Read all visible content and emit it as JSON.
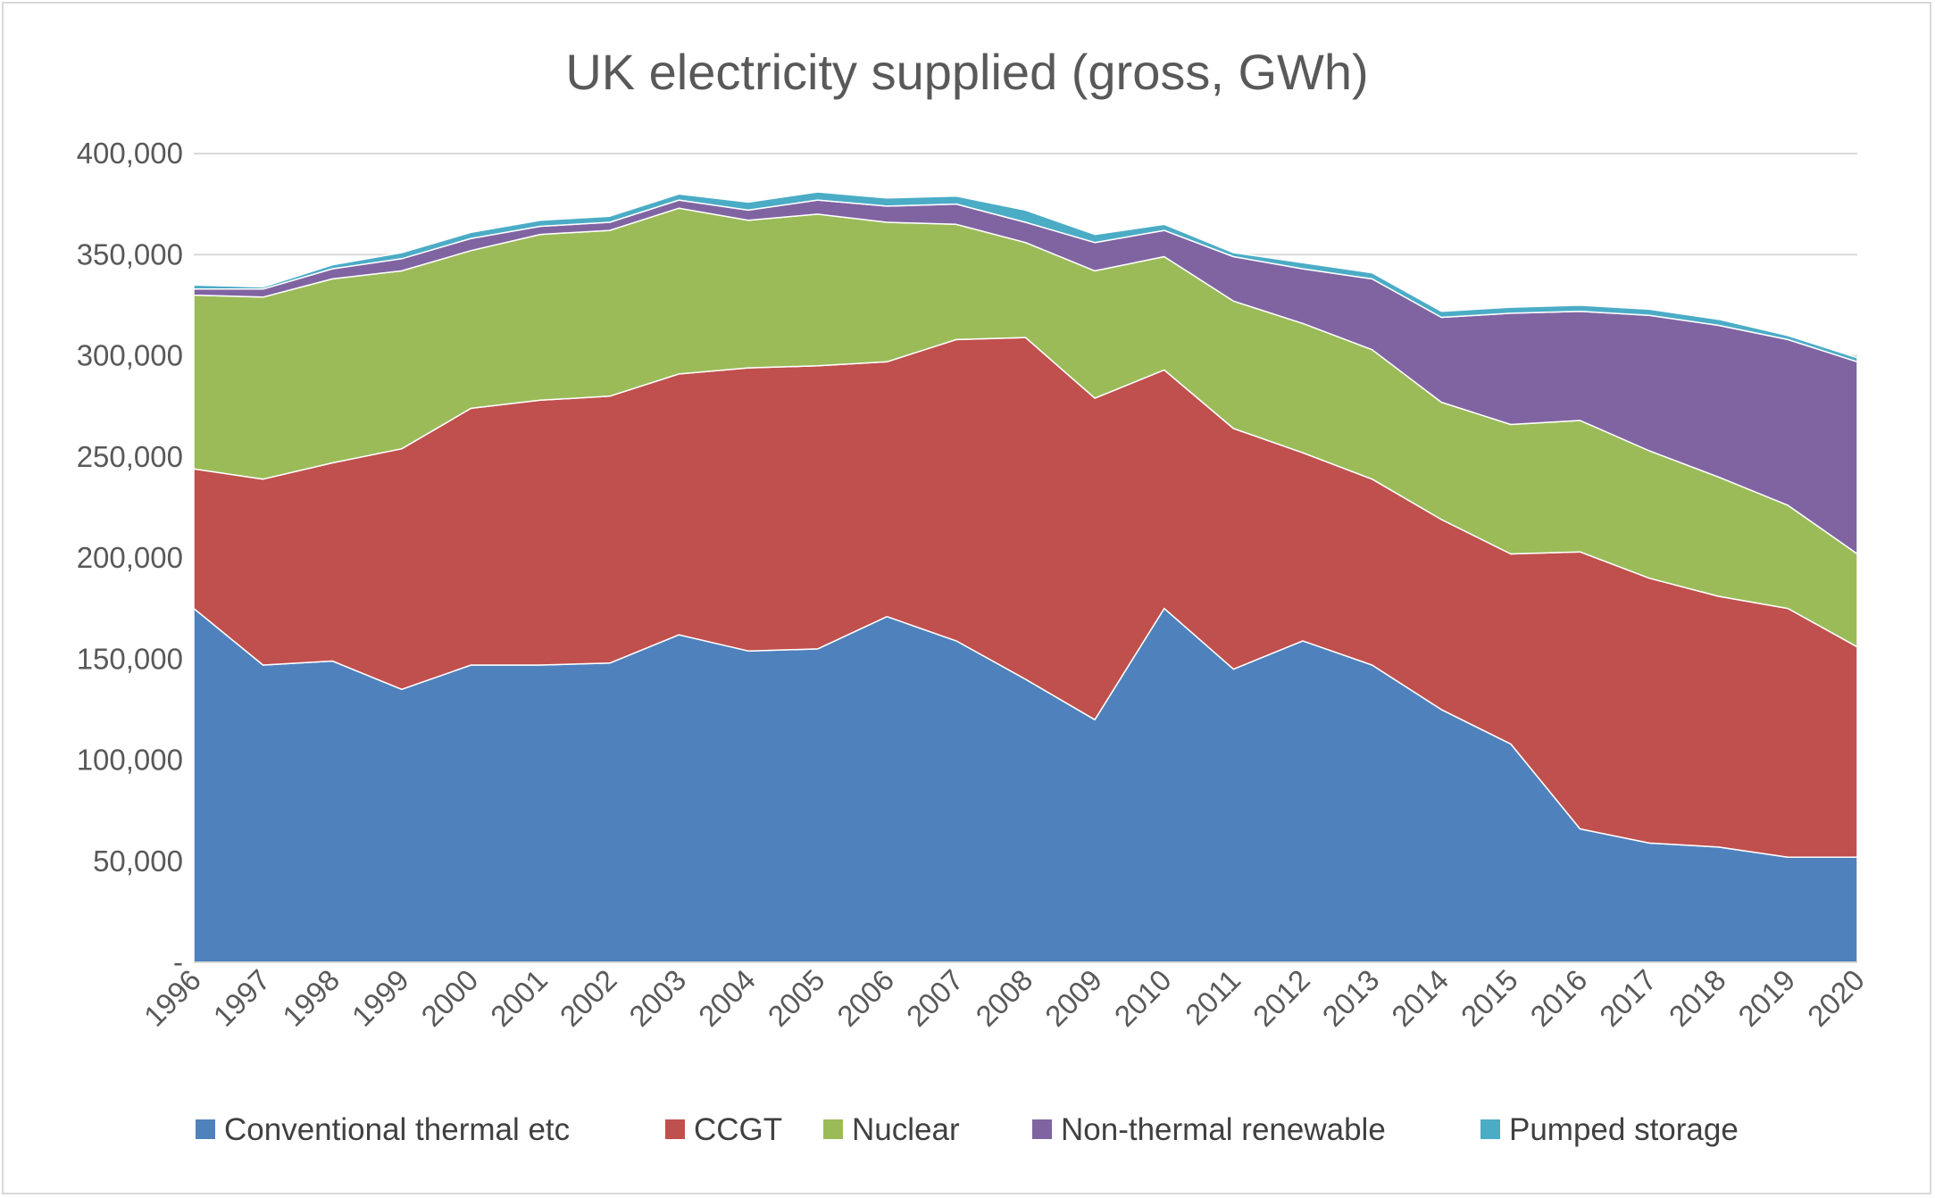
{
  "chart_data": {
    "type": "area",
    "stacked": true,
    "title": "UK electricity supplied (gross, GWh)",
    "xlabel": "",
    "ylabel": "",
    "ylim": [
      0,
      400000
    ],
    "y_ticks": [
      0,
      50000,
      100000,
      150000,
      200000,
      250000,
      300000,
      350000,
      400000
    ],
    "y_tick_labels": [
      "-",
      "50,000",
      "100,000",
      "150,000",
      "200,000",
      "250,000",
      "300,000",
      "350,000",
      "400,000"
    ],
    "grid": true,
    "legend_position": "bottom",
    "categories": [
      "1996",
      "1997",
      "1998",
      "1999",
      "2000",
      "2001",
      "2002",
      "2003",
      "2004",
      "2005",
      "2006",
      "2007",
      "2008",
      "2009",
      "2010",
      "2011",
      "2012",
      "2013",
      "2014",
      "2015",
      "2016",
      "2017",
      "2018",
      "2019",
      "2020"
    ],
    "series": [
      {
        "name": "Conventional thermal etc",
        "color": "#4f81bd",
        "values": [
          175000,
          147000,
          149000,
          135000,
          147000,
          147000,
          148000,
          162000,
          154000,
          155000,
          171000,
          159000,
          140000,
          120000,
          175000,
          145000,
          159000,
          147000,
          125000,
          108000,
          66000,
          59000,
          57000,
          52000,
          52000
        ]
      },
      {
        "name": "CCGT",
        "color": "#c0504d",
        "values": [
          69000,
          92000,
          98000,
          119000,
          127000,
          131000,
          132000,
          129000,
          140000,
          140000,
          126000,
          149000,
          169000,
          159000,
          118000,
          119000,
          93000,
          92000,
          94000,
          94000,
          137000,
          131000,
          124000,
          123000,
          104000
        ]
      },
      {
        "name": "Nuclear",
        "color": "#9bbb59",
        "values": [
          86000,
          90000,
          91000,
          88000,
          78000,
          82000,
          82000,
          82000,
          73000,
          75000,
          69000,
          57000,
          47000,
          63000,
          56000,
          63000,
          64000,
          64000,
          58000,
          64000,
          65000,
          63000,
          59000,
          51000,
          46000
        ]
      },
      {
        "name": "Non-thermal renewable",
        "color": "#8064a2",
        "values": [
          3000,
          4000,
          5000,
          6000,
          6000,
          4000,
          4000,
          4000,
          5000,
          7000,
          8000,
          10000,
          10000,
          14000,
          13000,
          22000,
          27000,
          35000,
          42000,
          55000,
          54000,
          67000,
          75000,
          82000,
          95000
        ]
      },
      {
        "name": "Pumped storage",
        "color": "#4bacc6",
        "values": [
          2000,
          1000,
          2000,
          3000,
          3000,
          3000,
          3000,
          3000,
          4000,
          4000,
          4000,
          4000,
          6000,
          4000,
          3000,
          2000,
          3000,
          3000,
          3000,
          3000,
          3000,
          3000,
          3000,
          2000,
          2000
        ]
      }
    ]
  }
}
